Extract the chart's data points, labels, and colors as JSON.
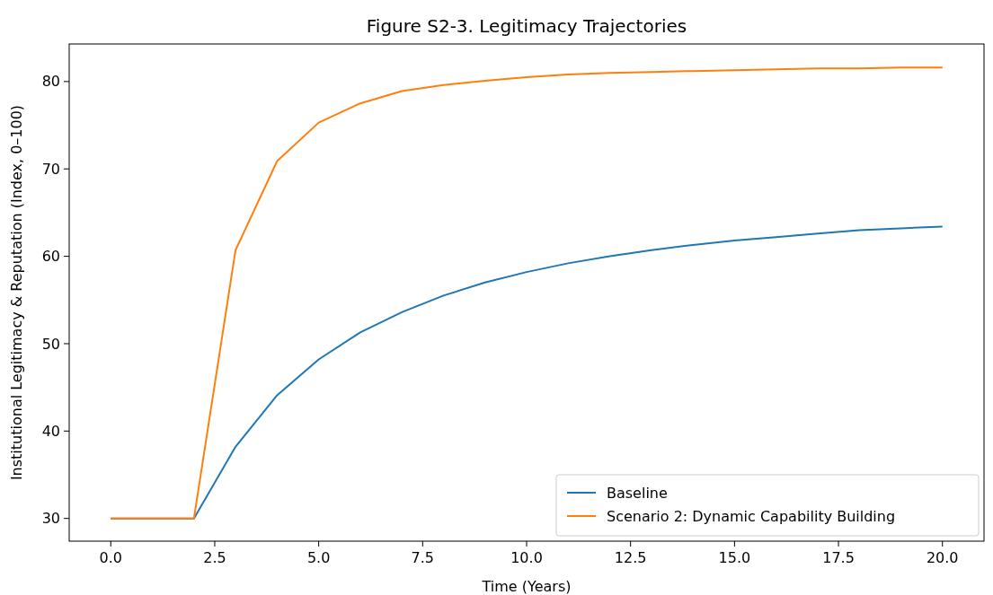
{
  "chart_data": {
    "type": "line",
    "title": "Figure S2-3. Legitimacy Trajectories",
    "xlabel": "Time (Years)",
    "ylabel": "Institutional Legitimacy & Reputation (Index, 0–100)",
    "x": [
      0,
      1,
      2,
      3,
      4,
      5,
      6,
      7,
      8,
      9,
      10,
      11,
      12,
      13,
      14,
      15,
      16,
      17,
      18,
      19,
      20
    ],
    "series": [
      {
        "name": "Baseline",
        "color": "#1f77b4",
        "values": [
          30,
          30,
          30,
          38.2,
          44.1,
          48.2,
          51.3,
          53.6,
          55.5,
          57.0,
          58.2,
          59.2,
          60.0,
          60.7,
          61.3,
          61.8,
          62.2,
          62.6,
          63.0,
          63.2,
          63.4
        ]
      },
      {
        "name": "Scenario 2: Dynamic Capability Building",
        "color": "#ff7f0e",
        "values": [
          30,
          30,
          30,
          60.7,
          70.9,
          75.3,
          77.5,
          78.9,
          79.6,
          80.1,
          80.5,
          80.8,
          81.0,
          81.1,
          81.2,
          81.3,
          81.4,
          81.5,
          81.5,
          81.6,
          81.6
        ]
      }
    ],
    "xlim": [
      -1,
      21
    ],
    "xticks": [
      {
        "value": 0,
        "label": "0.0"
      },
      {
        "value": 2.5,
        "label": "2.5"
      },
      {
        "value": 5,
        "label": "5.0"
      },
      {
        "value": 7.5,
        "label": "7.5"
      },
      {
        "value": 10,
        "label": "10.0"
      },
      {
        "value": 12.5,
        "label": "12.5"
      },
      {
        "value": 15,
        "label": "15.0"
      },
      {
        "value": 17.5,
        "label": "17.5"
      },
      {
        "value": 20,
        "label": "20.0"
      }
    ],
    "ylim": [
      27.4,
      84.3
    ],
    "yticks": [
      30,
      40,
      50,
      60,
      70,
      80
    ],
    "legend": "bottom right",
    "grid": false,
    "line_style": "solid",
    "marker": "none"
  }
}
